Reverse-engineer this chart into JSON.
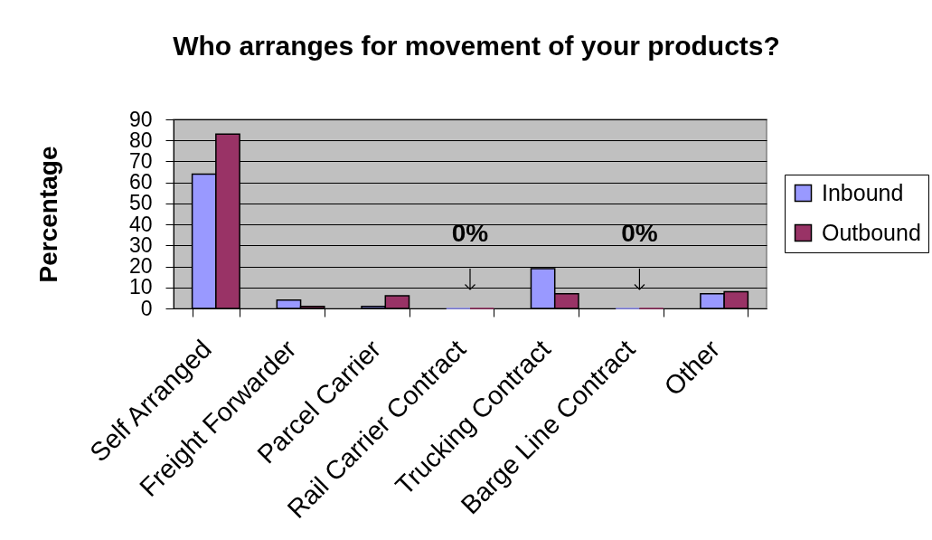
{
  "chart_data": {
    "type": "bar",
    "title": "Who arranges for movement of your products?",
    "ylabel": "Percentage",
    "categories": [
      "Self Arranged",
      "Freight Forwarder",
      "Parcel Carrier",
      "Rail Carrier Contract",
      "Trucking Contract",
      "Barge Line Contract",
      "Other"
    ],
    "series": [
      {
        "name": "Inbound",
        "color": "#9999ff",
        "values": [
          64,
          4,
          1,
          0,
          19,
          0,
          7
        ]
      },
      {
        "name": "Outbound",
        "color": "#993366",
        "values": [
          83,
          1,
          6,
          0,
          7,
          0,
          8
        ]
      }
    ],
    "ylim": [
      0,
      90
    ],
    "yticks": [
      0,
      10,
      20,
      30,
      40,
      50,
      60,
      70,
      80,
      90
    ],
    "grid": "y",
    "legend": "right",
    "annotations": [
      {
        "text": "0%",
        "x": "Rail Carrier Contract",
        "y": 0
      },
      {
        "text": "0%",
        "x": "Barge Line Contract",
        "y": 0
      }
    ]
  }
}
